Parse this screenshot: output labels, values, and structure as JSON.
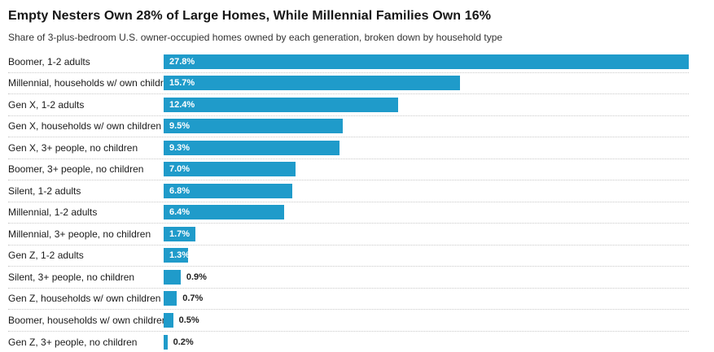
{
  "chart": {
    "title": "Empty Nesters Own 28% of Large Homes, While Millennial Families Own 16%",
    "subtitle": "Share of 3-plus-bedroom U.S. owner-occupied homes owned by each generation, broken down by household type"
  },
  "chart_data": {
    "type": "bar",
    "orientation": "horizontal",
    "title": "Empty Nesters Own 28% of Large Homes, While Millennial Families Own 16%",
    "subtitle": "Share of 3-plus-bedroom U.S. owner-occupied homes owned by each generation, broken down by household type",
    "categories": [
      "Boomer, 1-2 adults",
      "Millennial, households w/ own children",
      "Gen X, 1-2 adults",
      "Gen X, households w/ own children",
      "Gen X, 3+ people, no children",
      "Boomer, 3+ people, no children",
      "Silent, 1-2 adults",
      "Millennial, 1-2 adults",
      "Millennial, 3+ people, no children",
      "Gen Z, 1-2 adults",
      "Silent, 3+ people, no children",
      "Gen Z, households w/ own children",
      "Boomer, households w/ own children",
      "Gen Z, 3+ people, no children"
    ],
    "values": [
      27.8,
      15.7,
      12.4,
      9.5,
      9.3,
      7.0,
      6.8,
      6.4,
      1.7,
      1.3,
      0.9,
      0.7,
      0.5,
      0.2
    ],
    "value_labels": [
      "27.8%",
      "15.7%",
      "12.4%",
      "9.5%",
      "9.3%",
      "7.0%",
      "6.8%",
      "6.4%",
      "1.7%",
      "1.3%",
      "0.9%",
      "0.7%",
      "0.5%",
      "0.2%"
    ],
    "xlabel": "",
    "ylabel": "",
    "xlim": [
      0,
      27.8
    ],
    "grid": false,
    "legend": false,
    "separator_style": "dotted",
    "bar_color": "#1f9bca",
    "value_label_inside_color": "#ffffff",
    "value_label_outside_color": "#222222"
  }
}
